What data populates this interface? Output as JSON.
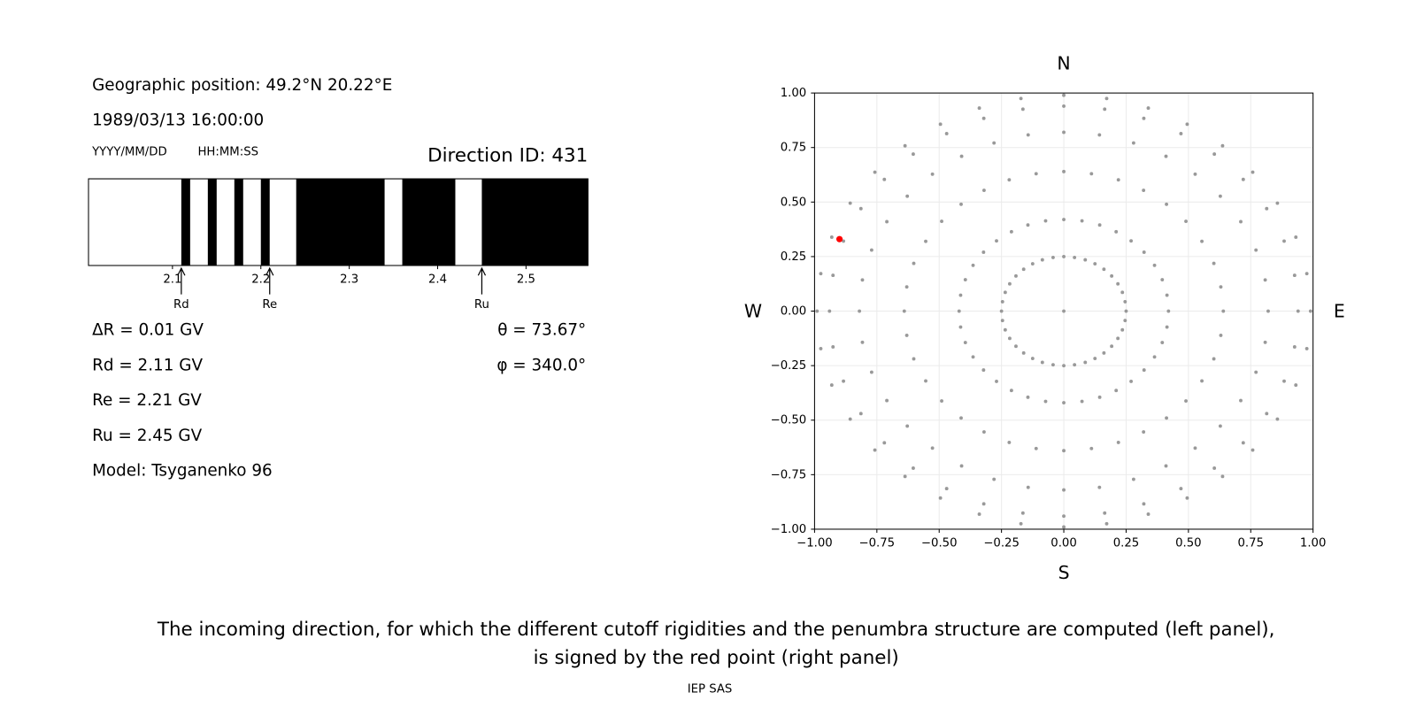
{
  "position": "Geographic position: 49.2°N 20.22°E",
  "datetime": "1989/03/13 16:00:00",
  "date_format": "YYYY/MM/DD",
  "time_format": "HH:MM:SS",
  "parameters": [
    "ΔR = 0.01 GV",
    "Rd = 2.11 GV",
    "Re = 2.21 GV",
    "Ru = 2.45 GV",
    "Model: Tsyganenko 96"
  ],
  "angles": [
    "θ = 73.67°",
    "φ = 340.0°"
  ],
  "caption": [
    "The incoming direction, for which the different cutoff rigidities and the penumbra structure are computed (left panel),",
    "is signed by the red point (right panel)"
  ],
  "footer": "IEP SAS",
  "chart_data": [
    {
      "type": "penumbra",
      "title": "Direction ID: 431",
      "xlim": [
        2.005,
        2.57
      ],
      "xticks": [
        2.1,
        2.2,
        2.3,
        2.4,
        2.5
      ],
      "color": "#000000",
      "forbidden_bands": [
        [
          2.11,
          2.12
        ],
        [
          2.14,
          2.15
        ],
        [
          2.17,
          2.18
        ],
        [
          2.2,
          2.21
        ],
        [
          2.24,
          2.34
        ],
        [
          2.36,
          2.42
        ],
        [
          2.45,
          2.57
        ]
      ],
      "markers": [
        {
          "label": "Rd",
          "value": 2.11
        },
        {
          "label": "Re",
          "value": 2.21
        },
        {
          "label": "Ru",
          "value": 2.45
        }
      ]
    },
    {
      "type": "scatter",
      "color": "#999999",
      "grid": true,
      "xlim": [
        -1,
        1
      ],
      "ylim": [
        -1,
        1
      ],
      "xticks": [
        {
          "value": -1,
          "label": "−1.00"
        },
        {
          "value": -0.75,
          "label": "−0.75"
        },
        {
          "value": -0.5,
          "label": "−0.50"
        },
        {
          "value": -0.25,
          "label": "−0.25"
        },
        {
          "value": 0,
          "label": "0.00"
        },
        {
          "value": 0.25,
          "label": "0.25"
        },
        {
          "value": 0.5,
          "label": "0.50"
        },
        {
          "value": 0.75,
          "label": "0.75"
        },
        {
          "value": 1,
          "label": "1.00"
        }
      ],
      "yticks": [
        {
          "value": -1,
          "label": "−1.00"
        },
        {
          "value": -0.75,
          "label": "−0.75"
        },
        {
          "value": -0.5,
          "label": "−0.50"
        },
        {
          "value": -0.25,
          "label": "−0.25"
        },
        {
          "value": 0,
          "label": "0.00"
        },
        {
          "value": 0.25,
          "label": "0.25"
        },
        {
          "value": 0.5,
          "label": "0.50"
        },
        {
          "value": 0.75,
          "label": "0.75"
        },
        {
          "value": 1,
          "label": "1.00"
        }
      ],
      "compass": {
        "top": "N",
        "bottom": "S",
        "left": "W",
        "right": "E"
      },
      "highlight": {
        "x": -0.9,
        "y": 0.33,
        "color": "#ff0000"
      },
      "x": [
        0,
        0.25,
        0.246,
        0.235,
        0.217,
        0.192,
        0.161,
        0.125,
        0.086,
        0.043,
        0,
        -0.043,
        -0.086,
        -0.125,
        -0.161,
        -0.192,
        -0.217,
        -0.235,
        -0.246,
        -0.25,
        -0.246,
        -0.235,
        -0.217,
        -0.192,
        -0.161,
        -0.125,
        -0.086,
        -0.043,
        0,
        0.043,
        0.086,
        0.125,
        0.161,
        0.192,
        0.217,
        0.235,
        0.246,
        0.42,
        0.414,
        0.395,
        0.364,
        0.322,
        0.27,
        0.21,
        0.144,
        0.073,
        0,
        -0.073,
        -0.144,
        -0.21,
        -0.27,
        -0.322,
        -0.364,
        -0.395,
        -0.414,
        -0.42,
        -0.414,
        -0.395,
        -0.364,
        -0.322,
        -0.27,
        -0.21,
        -0.144,
        -0.073,
        0,
        0.073,
        0.144,
        0.21,
        0.27,
        0.322,
        0.364,
        0.395,
        0.414,
        0.64,
        0.63,
        0.602,
        0.554,
        0.49,
        0.412,
        0.32,
        0.219,
        0.111,
        0,
        -0.111,
        -0.219,
        -0.32,
        -0.412,
        -0.49,
        -0.554,
        -0.602,
        -0.63,
        -0.64,
        -0.63,
        -0.602,
        -0.554,
        -0.49,
        -0.412,
        -0.32,
        -0.219,
        -0.111,
        0,
        0.111,
        0.219,
        0.32,
        0.412,
        0.49,
        0.554,
        0.602,
        0.63,
        0.82,
        0.808,
        0.771,
        0.71,
        0.628,
        0.527,
        0.41,
        0.28,
        0.143,
        0,
        -0.143,
        -0.28,
        -0.41,
        -0.527,
        -0.628,
        -0.71,
        -0.771,
        -0.808,
        -0.82,
        -0.808,
        -0.771,
        -0.71,
        -0.628,
        -0.527,
        -0.41,
        -0.28,
        -0.143,
        0,
        0.143,
        0.28,
        0.41,
        0.527,
        0.628,
        0.71,
        0.771,
        0.808,
        0.94,
        0.926,
        0.884,
        0.814,
        0.72,
        0.604,
        0.47,
        0.321,
        0.164,
        0,
        -0.164,
        -0.321,
        -0.47,
        -0.604,
        -0.72,
        -0.814,
        -0.884,
        -0.926,
        -0.94,
        -0.926,
        -0.884,
        -0.814,
        -0.72,
        -0.604,
        -0.47,
        -0.321,
        -0.164,
        0,
        0.164,
        0.321,
        0.47,
        0.604,
        0.72,
        0.814,
        0.884,
        0.926,
        0.99,
        0.975,
        0.931,
        0.857,
        0.758,
        0.637,
        0.495,
        0.339,
        0.172,
        0,
        -0.172,
        -0.339,
        -0.495,
        -0.637,
        -0.758,
        -0.857,
        -0.931,
        -0.975,
        -0.99,
        -0.975,
        -0.931,
        -0.857,
        -0.758,
        -0.637,
        -0.495,
        -0.339,
        -0.172,
        0,
        0.172,
        0.339,
        0.495,
        0.637,
        0.758,
        0.857,
        0.931,
        0.975
      ],
      "y": [
        0,
        0,
        0.043,
        0.086,
        0.125,
        0.161,
        0.192,
        0.217,
        0.235,
        0.246,
        0.25,
        0.246,
        0.235,
        0.217,
        0.192,
        0.161,
        0.125,
        0.086,
        0.043,
        0,
        -0.043,
        -0.086,
        -0.125,
        -0.161,
        -0.192,
        -0.217,
        -0.235,
        -0.246,
        -0.25,
        -0.246,
        -0.235,
        -0.217,
        -0.192,
        -0.161,
        -0.125,
        -0.086,
        -0.043,
        0,
        0.073,
        0.144,
        0.21,
        0.27,
        0.322,
        0.364,
        0.395,
        0.414,
        0.42,
        0.414,
        0.395,
        0.364,
        0.322,
        0.27,
        0.21,
        0.144,
        0.073,
        0,
        -0.073,
        -0.144,
        -0.21,
        -0.27,
        -0.322,
        -0.364,
        -0.395,
        -0.414,
        -0.42,
        -0.414,
        -0.395,
        -0.364,
        -0.322,
        -0.27,
        -0.21,
        -0.144,
        -0.073,
        0,
        0.111,
        0.219,
        0.32,
        0.412,
        0.49,
        0.554,
        0.602,
        0.63,
        0.64,
        0.63,
        0.602,
        0.554,
        0.49,
        0.412,
        0.32,
        0.219,
        0.111,
        0,
        -0.111,
        -0.219,
        -0.32,
        -0.412,
        -0.49,
        -0.554,
        -0.602,
        -0.63,
        -0.64,
        -0.63,
        -0.602,
        -0.554,
        -0.49,
        -0.412,
        -0.32,
        -0.219,
        -0.111,
        0,
        0.143,
        0.28,
        0.41,
        0.527,
        0.628,
        0.71,
        0.771,
        0.808,
        0.82,
        0.808,
        0.771,
        0.71,
        0.628,
        0.527,
        0.41,
        0.28,
        0.143,
        0,
        -0.143,
        -0.28,
        -0.41,
        -0.527,
        -0.628,
        -0.71,
        -0.771,
        -0.808,
        -0.82,
        -0.808,
        -0.771,
        -0.71,
        -0.628,
        -0.527,
        -0.41,
        -0.28,
        -0.143,
        0,
        0.164,
        0.321,
        0.47,
        0.604,
        0.72,
        0.814,
        0.884,
        0.926,
        0.94,
        0.926,
        0.884,
        0.814,
        0.72,
        0.604,
        0.47,
        0.321,
        0.164,
        0,
        -0.164,
        -0.321,
        -0.47,
        -0.604,
        -0.72,
        -0.814,
        -0.884,
        -0.926,
        -0.94,
        -0.926,
        -0.884,
        -0.814,
        -0.72,
        -0.604,
        -0.47,
        -0.321,
        -0.164,
        0,
        0.172,
        0.339,
        0.495,
        0.637,
        0.758,
        0.857,
        0.931,
        0.975,
        0.99,
        0.975,
        0.931,
        0.857,
        0.758,
        0.637,
        0.495,
        0.339,
        0.172,
        0,
        -0.172,
        -0.339,
        -0.495,
        -0.637,
        -0.758,
        -0.857,
        -0.931,
        -0.975,
        -0.99,
        -0.975,
        -0.931,
        -0.857,
        -0.758,
        -0.637,
        -0.495,
        -0.339,
        -0.172
      ]
    }
  ]
}
